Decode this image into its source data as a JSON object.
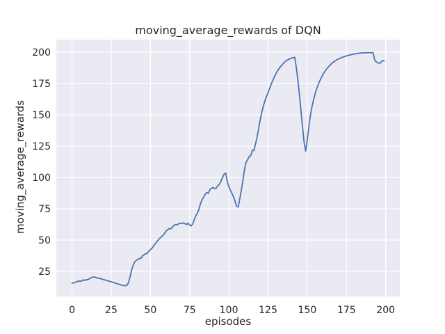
{
  "chart_data": {
    "type": "line",
    "title": "moving_average_rewards of DQN",
    "xlabel": "episodes",
    "ylabel": "moving_average_rewards",
    "x_ticks": [
      0,
      25,
      50,
      75,
      100,
      125,
      150,
      175,
      200
    ],
    "y_ticks": [
      25,
      50,
      75,
      100,
      125,
      150,
      175,
      200
    ],
    "xlim": [
      -10,
      209
    ],
    "ylim": [
      5,
      210
    ],
    "grid": true,
    "legend": "none",
    "style": {
      "figure_bg": "#ffffff",
      "panel_bg": "#eaeaf2",
      "grid_color": "#ffffff",
      "line_color": "#4c72b0",
      "text_color": "#262626",
      "line_width": 1.8
    },
    "series": [
      {
        "name": "moving_average_rewards",
        "x": [
          0,
          1,
          2,
          3,
          4,
          5,
          6,
          7,
          8,
          9,
          10,
          11,
          12,
          13,
          14,
          15,
          16,
          17,
          18,
          19,
          20,
          21,
          22,
          23,
          24,
          25,
          26,
          27,
          28,
          29,
          30,
          31,
          32,
          33,
          34,
          35,
          36,
          37,
          38,
          39,
          40,
          41,
          42,
          43,
          44,
          45,
          46,
          47,
          48,
          49,
          50,
          51,
          52,
          53,
          54,
          55,
          56,
          57,
          58,
          59,
          60,
          61,
          62,
          63,
          64,
          65,
          66,
          67,
          68,
          69,
          70,
          71,
          72,
          73,
          74,
          75,
          76,
          77,
          78,
          79,
          80,
          81,
          82,
          83,
          84,
          85,
          86,
          87,
          88,
          89,
          90,
          91,
          92,
          93,
          94,
          95,
          96,
          97,
          98,
          99,
          100,
          101,
          102,
          103,
          104,
          105,
          106,
          107,
          108,
          109,
          110,
          111,
          112,
          113,
          114,
          115,
          116,
          117,
          118,
          119,
          120,
          121,
          122,
          123,
          124,
          125,
          126,
          127,
          128,
          129,
          130,
          131,
          132,
          133,
          134,
          135,
          136,
          137,
          138,
          139,
          140,
          141,
          142,
          143,
          144,
          145,
          146,
          147,
          148,
          149,
          150,
          151,
          152,
          153,
          154,
          155,
          156,
          157,
          158,
          159,
          160,
          161,
          162,
          163,
          164,
          165,
          166,
          167,
          168,
          169,
          170,
          171,
          172,
          173,
          174,
          175,
          176,
          177,
          178,
          179,
          180,
          181,
          182,
          183,
          184,
          185,
          186,
          187,
          188,
          189,
          190,
          191,
          192,
          193,
          194,
          195,
          196,
          197,
          198,
          199
        ],
        "y": [
          15.5,
          15.8,
          16.2,
          16.6,
          17.4,
          17.0,
          17.3,
          18.2,
          17.8,
          18.4,
          18.3,
          19.0,
          20.0,
          20.3,
          20.6,
          20.2,
          19.8,
          19.5,
          19.3,
          18.9,
          18.5,
          18.2,
          17.8,
          17.4,
          17.1,
          16.7,
          16.3,
          15.9,
          15.5,
          15.1,
          14.7,
          14.3,
          13.9,
          13.7,
          13.6,
          13.9,
          16.0,
          20.5,
          26.0,
          30.0,
          32.5,
          33.8,
          34.6,
          35.2,
          35.6,
          37.3,
          38.4,
          38.9,
          39.6,
          41.0,
          42.4,
          43.4,
          45.3,
          47.0,
          48.6,
          50.1,
          51.5,
          52.7,
          53.7,
          55.4,
          57.2,
          58.3,
          59.2,
          58.9,
          60.4,
          61.7,
          62.4,
          62.2,
          63.0,
          63.5,
          63.1,
          63.7,
          63.1,
          62.4,
          63.4,
          62.0,
          61.3,
          63.0,
          66.4,
          69.4,
          71.5,
          75.0,
          79.4,
          82.4,
          84.5,
          86.6,
          88.0,
          87.4,
          90.4,
          91.4,
          92.0,
          91.0,
          91.6,
          93.4,
          94.5,
          97.0,
          100.1,
          102.6,
          103.5,
          97.0,
          92.6,
          89.8,
          87.2,
          84.4,
          80.8,
          77.0,
          76.4,
          83.0,
          90.0,
          98.0,
          106.5,
          112.0,
          114.2,
          116.8,
          117.4,
          121.8,
          121.4,
          126.8,
          132.0,
          139.0,
          146.0,
          152.0,
          157.0,
          161.0,
          164.6,
          167.6,
          171.0,
          174.4,
          177.4,
          180.2,
          182.8,
          185.0,
          186.9,
          188.5,
          190.0,
          191.4,
          192.5,
          193.4,
          194.2,
          194.8,
          195.3,
          195.7,
          195.9,
          188.0,
          178.0,
          166.0,
          153.0,
          140.0,
          128.0,
          121.0,
          130.0,
          140.0,
          149.5,
          156.5,
          162.0,
          166.8,
          170.8,
          174.2,
          177.2,
          179.8,
          182.2,
          184.2,
          186.0,
          187.6,
          189.0,
          190.3,
          191.4,
          192.4,
          193.2,
          194.0,
          194.6,
          195.2,
          195.7,
          196.2,
          196.6,
          197.0,
          197.4,
          197.7,
          198.0,
          198.3,
          198.5,
          198.8,
          199.0,
          199.2,
          199.3,
          199.4,
          199.5,
          199.5,
          199.6,
          199.6,
          199.6,
          199.6,
          199.6,
          193.6,
          192.4,
          191.5,
          191.0,
          191.9,
          193.4,
          193.0
        ]
      }
    ]
  }
}
